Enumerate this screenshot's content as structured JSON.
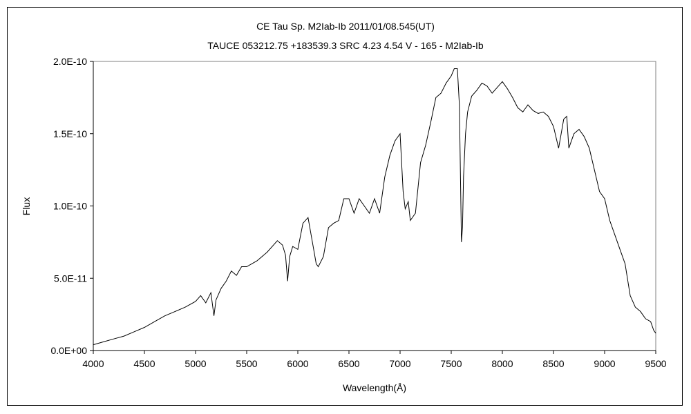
{
  "chart_data": {
    "type": "line",
    "title": "CE Tau    Sp. M2Iab-Ib    2011/01/08.545(UT)",
    "subtitle": "TAUCE 053212.75 +183539.3 SRC 4.23 4.54 V - 165 - M2Iab-Ib",
    "xlabel": "Wavelength(Å)",
    "ylabel": "Flux",
    "xlim": [
      4000,
      9500
    ],
    "ylim": [
      0,
      2e-10
    ],
    "x_ticks": [
      "4000",
      "4500",
      "5000",
      "5500",
      "6000",
      "6500",
      "7000",
      "7500",
      "8000",
      "8500",
      "9000",
      "9500"
    ],
    "y_ticks": [
      "0.0E+00",
      "5.0E-11",
      "1.0E-10",
      "1.5E-10",
      "2.0E-10"
    ],
    "grid": false,
    "legend": "none",
    "line_color": "#000000",
    "series": [
      {
        "x": [
          4000,
          4100,
          4200,
          4300,
          4400,
          4500,
          4600,
          4700,
          4800,
          4900,
          5000,
          5050,
          5100,
          5150,
          5180,
          5200,
          5250,
          5300,
          5350,
          5400,
          5450,
          5500,
          5600,
          5700,
          5800,
          5850,
          5880,
          5900,
          5920,
          5950,
          6000,
          6050,
          6100,
          6150,
          6180,
          6200,
          6250,
          6300,
          6350,
          6400,
          6450,
          6500,
          6550,
          6600,
          6650,
          6700,
          6750,
          6800,
          6850,
          6900,
          6950,
          7000,
          7030,
          7050,
          7080,
          7100,
          7150,
          7200,
          7250,
          7300,
          7350,
          7400,
          7450,
          7500,
          7530,
          7560,
          7580,
          7600,
          7610,
          7620,
          7640,
          7660,
          7700,
          7750,
          7800,
          7850,
          7900,
          7950,
          8000,
          8050,
          8100,
          8150,
          8200,
          8250,
          8300,
          8350,
          8400,
          8450,
          8500,
          8550,
          8570,
          8600,
          8630,
          8650,
          8700,
          8750,
          8800,
          8850,
          8900,
          8950,
          9000,
          9050,
          9100,
          9150,
          9200,
          9250,
          9300,
          9350,
          9400,
          9450,
          9480,
          9500
        ],
        "y": [
          4e-12,
          6e-12,
          8e-12,
          1e-11,
          1.3e-11,
          1.6e-11,
          2e-11,
          2.4e-11,
          2.7e-11,
          3e-11,
          3.4e-11,
          3.8e-11,
          3.3e-11,
          4e-11,
          2.4e-11,
          3.5e-11,
          4.3e-11,
          4.8e-11,
          5.5e-11,
          5.2e-11,
          5.8e-11,
          5.8e-11,
          6.2e-11,
          6.8e-11,
          7.6e-11,
          7.3e-11,
          6.6e-11,
          4.8e-11,
          6.5e-11,
          7.2e-11,
          7e-11,
          8.8e-11,
          9.2e-11,
          7.2e-11,
          6e-11,
          5.8e-11,
          6.5e-11,
          8.5e-11,
          8.8e-11,
          9e-11,
          1.05e-10,
          1.05e-10,
          9.5e-11,
          1.05e-10,
          1e-10,
          9.5e-11,
          1.05e-10,
          9.5e-11,
          1.2e-10,
          1.35e-10,
          1.45e-10,
          1.5e-10,
          1.1e-10,
          9.8e-11,
          1.03e-10,
          9e-11,
          9.5e-11,
          1.3e-10,
          1.42e-10,
          1.58e-10,
          1.75e-10,
          1.78e-10,
          1.85e-10,
          1.9e-10,
          1.95e-10,
          1.95e-10,
          1.7e-10,
          7.5e-11,
          8.5e-11,
          1.2e-10,
          1.5e-10,
          1.65e-10,
          1.76e-10,
          1.8e-10,
          1.85e-10,
          1.83e-10,
          1.78e-10,
          1.82e-10,
          1.86e-10,
          1.81e-10,
          1.75e-10,
          1.68e-10,
          1.65e-10,
          1.7e-10,
          1.66e-10,
          1.64e-10,
          1.65e-10,
          1.62e-10,
          1.55e-10,
          1.4e-10,
          1.48e-10,
          1.6e-10,
          1.62e-10,
          1.4e-10,
          1.5e-10,
          1.53e-10,
          1.48e-10,
          1.4e-10,
          1.25e-10,
          1.1e-10,
          1.05e-10,
          9e-11,
          8e-11,
          7e-11,
          6e-11,
          3.8e-11,
          3e-11,
          2.7e-11,
          2.2e-11,
          2e-11,
          1.4e-11,
          1.2e-11
        ]
      }
    ]
  }
}
